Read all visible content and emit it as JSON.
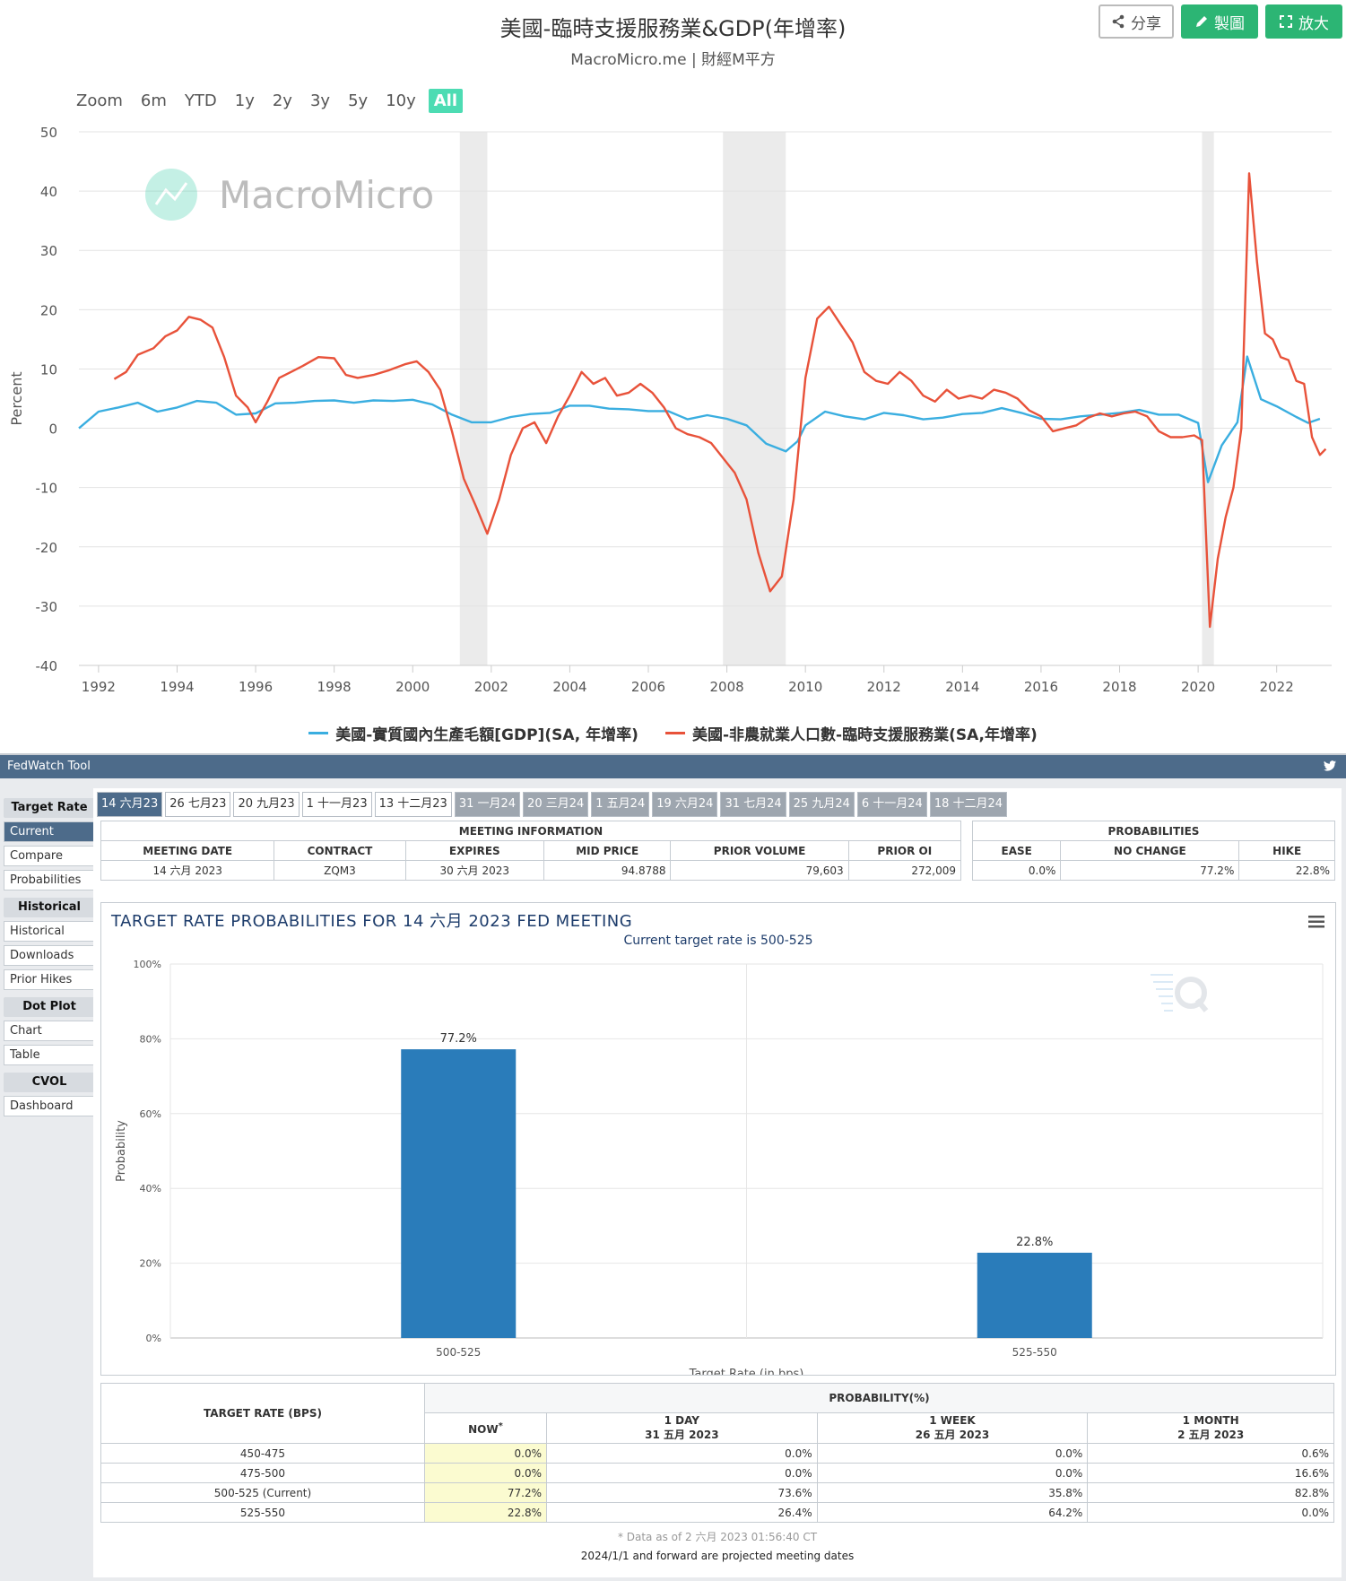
{
  "top": {
    "title": "美國-臨時支援服務業&GDP(年增率)",
    "subtitle": "MacroMicro.me | 財經M平方",
    "buttons": {
      "share": "分享",
      "draw": "製圖",
      "expand": "放大"
    },
    "zoom": {
      "label": "Zoom",
      "options": [
        "6m",
        "YTD",
        "1y",
        "2y",
        "3y",
        "5y",
        "10y",
        "All"
      ],
      "selected": "All"
    },
    "watermark": "MacroMicro",
    "colors": {
      "gdp": "#3aaee0",
      "temp": "#e8523a",
      "recession": "#ebebeb"
    }
  },
  "chart_data": [
    {
      "type": "line",
      "title": "美國-臨時支援服務業&GDP(年增率)",
      "ylabel": "Percent",
      "ylim": [
        -40,
        50
      ],
      "yticks": [
        50,
        40,
        30,
        20,
        10,
        0,
        -10,
        -20,
        -30,
        -40
      ],
      "xticks": [
        "1992",
        "1994",
        "1996",
        "1998",
        "2000",
        "2002",
        "2004",
        "2006",
        "2008",
        "2010",
        "2012",
        "2014",
        "2016",
        "2018",
        "2020",
        "2022"
      ],
      "xlim": [
        1991.5,
        2023.4
      ],
      "recessions": [
        [
          2001.2,
          2001.9
        ],
        [
          2007.9,
          2009.5
        ],
        [
          2020.1,
          2020.4
        ]
      ],
      "legend_position": "bottom",
      "series": [
        {
          "name": "美國-實質國內生產毛額[GDP](SA, 年增率)",
          "color": "#3aaee0",
          "points": [
            [
              1991.5,
              0
            ],
            [
              1992,
              2.8
            ],
            [
              1992.5,
              3.5
            ],
            [
              1993,
              4.3
            ],
            [
              1993.5,
              2.8
            ],
            [
              1994,
              3.5
            ],
            [
              1994.5,
              4.6
            ],
            [
              1995,
              4.3
            ],
            [
              1995.5,
              2.3
            ],
            [
              1996,
              2.5
            ],
            [
              1996.5,
              4.2
            ],
            [
              1997,
              4.3
            ],
            [
              1997.5,
              4.6
            ],
            [
              1998,
              4.7
            ],
            [
              1998.5,
              4.3
            ],
            [
              1999,
              4.7
            ],
            [
              1999.5,
              4.6
            ],
            [
              2000,
              4.8
            ],
            [
              2000.5,
              4.0
            ],
            [
              2001,
              2.3
            ],
            [
              2001.5,
              1.0
            ],
            [
              2002,
              1.0
            ],
            [
              2002.5,
              1.9
            ],
            [
              2003,
              2.4
            ],
            [
              2003.5,
              2.6
            ],
            [
              2004,
              3.8
            ],
            [
              2004.5,
              3.8
            ],
            [
              2005,
              3.3
            ],
            [
              2005.5,
              3.2
            ],
            [
              2006,
              2.9
            ],
            [
              2006.5,
              2.9
            ],
            [
              2007,
              1.5
            ],
            [
              2007.5,
              2.2
            ],
            [
              2008,
              1.6
            ],
            [
              2008.5,
              0.5
            ],
            [
              2009,
              -2.6
            ],
            [
              2009.5,
              -3.9
            ],
            [
              2009.8,
              -2.2
            ],
            [
              2010,
              0.5
            ],
            [
              2010.5,
              2.8
            ],
            [
              2011,
              2.0
            ],
            [
              2011.5,
              1.5
            ],
            [
              2012,
              2.6
            ],
            [
              2012.5,
              2.2
            ],
            [
              2013,
              1.5
            ],
            [
              2013.5,
              1.8
            ],
            [
              2014,
              2.4
            ],
            [
              2014.5,
              2.6
            ],
            [
              2015,
              3.4
            ],
            [
              2015.5,
              2.6
            ],
            [
              2016,
              1.6
            ],
            [
              2016.5,
              1.5
            ],
            [
              2017,
              2.0
            ],
            [
              2017.5,
              2.3
            ],
            [
              2018,
              2.6
            ],
            [
              2018.5,
              3.1
            ],
            [
              2019,
              2.3
            ],
            [
              2019.5,
              2.3
            ],
            [
              2020,
              0.9
            ],
            [
              2020.25,
              -9.1
            ],
            [
              2020.6,
              -2.9
            ],
            [
              2021,
              1.0
            ],
            [
              2021.25,
              12.1
            ],
            [
              2021.6,
              4.9
            ],
            [
              2022,
              3.7
            ],
            [
              2022.5,
              1.9
            ],
            [
              2022.8,
              0.9
            ],
            [
              2023.1,
              1.6
            ]
          ]
        },
        {
          "name": "美國-非農就業人口數-臨時支援服務業(SA,年增率)",
          "color": "#e8523a",
          "points": [
            [
              1992.4,
              8.3
            ],
            [
              1992.7,
              9.5
            ],
            [
              1993,
              12.4
            ],
            [
              1993.4,
              13.5
            ],
            [
              1993.7,
              15.5
            ],
            [
              1994,
              16.5
            ],
            [
              1994.3,
              18.8
            ],
            [
              1994.6,
              18.3
            ],
            [
              1994.9,
              17.0
            ],
            [
              1995.2,
              12.0
            ],
            [
              1995.5,
              5.5
            ],
            [
              1995.8,
              3.5
            ],
            [
              1996,
              1.0
            ],
            [
              1996.3,
              4.5
            ],
            [
              1996.6,
              8.5
            ],
            [
              1996.9,
              9.5
            ],
            [
              1997.2,
              10.5
            ],
            [
              1997.6,
              12.0
            ],
            [
              1998,
              11.8
            ],
            [
              1998.3,
              9.0
            ],
            [
              1998.6,
              8.5
            ],
            [
              1999,
              9.0
            ],
            [
              1999.4,
              9.8
            ],
            [
              1999.8,
              10.8
            ],
            [
              2000.1,
              11.3
            ],
            [
              2000.4,
              9.5
            ],
            [
              2000.7,
              6.5
            ],
            [
              2001,
              -0.5
            ],
            [
              2001.3,
              -8.5
            ],
            [
              2001.6,
              -13.0
            ],
            [
              2001.9,
              -17.8
            ],
            [
              2002.2,
              -12.0
            ],
            [
              2002.5,
              -4.5
            ],
            [
              2002.8,
              0
            ],
            [
              2003.1,
              1.0
            ],
            [
              2003.4,
              -2.5
            ],
            [
              2003.7,
              2.0
            ],
            [
              2004,
              5.5
            ],
            [
              2004.3,
              9.5
            ],
            [
              2004.6,
              7.5
            ],
            [
              2004.9,
              8.5
            ],
            [
              2005.2,
              5.5
            ],
            [
              2005.5,
              6.0
            ],
            [
              2005.8,
              7.5
            ],
            [
              2006.1,
              6.0
            ],
            [
              2006.4,
              3.5
            ],
            [
              2006.7,
              0
            ],
            [
              2007,
              -1.0
            ],
            [
              2007.3,
              -1.5
            ],
            [
              2007.6,
              -2.5
            ],
            [
              2007.9,
              -5.0
            ],
            [
              2008.2,
              -7.5
            ],
            [
              2008.5,
              -12.0
            ],
            [
              2008.8,
              -21.0
            ],
            [
              2009.1,
              -27.5
            ],
            [
              2009.4,
              -25.0
            ],
            [
              2009.7,
              -12.0
            ],
            [
              2010,
              8.5
            ],
            [
              2010.3,
              18.5
            ],
            [
              2010.6,
              20.5
            ],
            [
              2010.9,
              17.5
            ],
            [
              2011.2,
              14.5
            ],
            [
              2011.5,
              9.5
            ],
            [
              2011.8,
              8.0
            ],
            [
              2012.1,
              7.5
            ],
            [
              2012.4,
              9.5
            ],
            [
              2012.7,
              8.0
            ],
            [
              2013,
              5.5
            ],
            [
              2013.3,
              4.5
            ],
            [
              2013.6,
              6.5
            ],
            [
              2013.9,
              5.0
            ],
            [
              2014.2,
              5.5
            ],
            [
              2014.5,
              5.0
            ],
            [
              2014.8,
              6.5
            ],
            [
              2015.1,
              6.0
            ],
            [
              2015.4,
              5.0
            ],
            [
              2015.7,
              3.0
            ],
            [
              2016,
              2.0
            ],
            [
              2016.3,
              -0.5
            ],
            [
              2016.6,
              0
            ],
            [
              2016.9,
              0.5
            ],
            [
              2017.2,
              1.8
            ],
            [
              2017.5,
              2.5
            ],
            [
              2017.8,
              2.0
            ],
            [
              2018.1,
              2.5
            ],
            [
              2018.4,
              2.8
            ],
            [
              2018.7,
              2.0
            ],
            [
              2019,
              -0.5
            ],
            [
              2019.3,
              -1.5
            ],
            [
              2019.6,
              -1.5
            ],
            [
              2019.9,
              -1.2
            ],
            [
              2020.1,
              -2.0
            ],
            [
              2020.3,
              -33.5
            ],
            [
              2020.5,
              -22.0
            ],
            [
              2020.7,
              -15.0
            ],
            [
              2020.9,
              -10.0
            ],
            [
              2021.1,
              0
            ],
            [
              2021.3,
              43.0
            ],
            [
              2021.5,
              28.0
            ],
            [
              2021.7,
              16.0
            ],
            [
              2021.9,
              15.0
            ],
            [
              2022.1,
              12.0
            ],
            [
              2022.3,
              11.5
            ],
            [
              2022.5,
              8.0
            ],
            [
              2022.7,
              7.5
            ],
            [
              2022.9,
              -1.5
            ],
            [
              2023.1,
              -4.5
            ],
            [
              2023.25,
              -3.5
            ]
          ]
        }
      ]
    },
    {
      "type": "bar",
      "title": "TARGET RATE PROBABILITIES FOR 14 六月 2023 FED MEETING",
      "subtitle": "Current target rate is 500-525",
      "xlabel": "Target Rate (in bps)",
      "ylabel": "Probability",
      "ylim": [
        0,
        100
      ],
      "yticks": [
        "0%",
        "20%",
        "40%",
        "60%",
        "80%",
        "100%"
      ],
      "categories": [
        "500-525",
        "525-550"
      ],
      "values": [
        77.2,
        22.8
      ],
      "data_labels": [
        "77.2%",
        "22.8%"
      ],
      "bar_color": "#2a7cba"
    }
  ],
  "fedwatch": {
    "header": "FedWatch Tool",
    "sidebar": [
      {
        "group": "Target Rate",
        "items": [
          {
            "label": "Current",
            "selected": true
          },
          {
            "label": "Compare"
          },
          {
            "label": "Probabilities"
          }
        ]
      },
      {
        "group": "Historical",
        "items": [
          {
            "label": "Historical"
          },
          {
            "label": "Downloads"
          },
          {
            "label": "Prior Hikes"
          }
        ]
      },
      {
        "group": "Dot Plot",
        "items": [
          {
            "label": "Chart"
          },
          {
            "label": "Table"
          }
        ]
      },
      {
        "group": "CVOL",
        "items": [
          {
            "label": "Dashboard"
          }
        ]
      }
    ],
    "tabs": [
      {
        "label": "14 六月23",
        "state": "sel"
      },
      {
        "label": "26 七月23",
        "state": ""
      },
      {
        "label": "20 九月23",
        "state": ""
      },
      {
        "label": "1 十一月23",
        "state": ""
      },
      {
        "label": "13 十二月23",
        "state": ""
      },
      {
        "label": "31 一月24",
        "state": "gray"
      },
      {
        "label": "20 三月24",
        "state": "gray"
      },
      {
        "label": "1 五月24",
        "state": "gray"
      },
      {
        "label": "19 六月24",
        "state": "gray"
      },
      {
        "label": "31 七月24",
        "state": "gray"
      },
      {
        "label": "25 九月24",
        "state": "gray"
      },
      {
        "label": "6 十一月24",
        "state": "gray"
      },
      {
        "label": "18 十二月24",
        "state": "gray"
      }
    ],
    "meeting_info": {
      "title": "MEETING INFORMATION",
      "headers": [
        "MEETING DATE",
        "CONTRACT",
        "EXPIRES",
        "MID PRICE",
        "PRIOR VOLUME",
        "PRIOR OI"
      ],
      "row": [
        "14 六月 2023",
        "ZQM3",
        "30 六月 2023",
        "94.8788",
        "79,603",
        "272,009"
      ]
    },
    "probabilities": {
      "title": "PROBABILITIES",
      "headers": [
        "EASE",
        "NO CHANGE",
        "HIKE"
      ],
      "row": [
        "0.0%",
        "77.2%",
        "22.8%"
      ]
    },
    "bottom_table": {
      "rate_header": "TARGET RATE (BPS)",
      "prob_header": "PROBABILITY(%)",
      "now_header": "NOW",
      "now_mark": "*",
      "cols": [
        {
          "line1": "1 DAY",
          "line2": "31 五月 2023"
        },
        {
          "line1": "1 WEEK",
          "line2": "26 五月 2023"
        },
        {
          "line1": "1 MONTH",
          "line2": "2 五月 2023"
        }
      ],
      "rows": [
        {
          "rate": "450-475",
          "now": "0.0%",
          "d1": "0.0%",
          "w1": "0.0%",
          "m1": "0.6%"
        },
        {
          "rate": "475-500",
          "now": "0.0%",
          "d1": "0.0%",
          "w1": "0.0%",
          "m1": "16.6%"
        },
        {
          "rate": "500-525 (Current)",
          "now": "77.2%",
          "d1": "73.6%",
          "w1": "35.8%",
          "m1": "82.8%"
        },
        {
          "rate": "525-550",
          "now": "22.8%",
          "d1": "26.4%",
          "w1": "64.2%",
          "m1": "0.0%"
        }
      ],
      "note1": "* Data as of 2 六月 2023 01:56:40 CT",
      "note2": "2024/1/1 and forward are projected meeting dates"
    }
  }
}
